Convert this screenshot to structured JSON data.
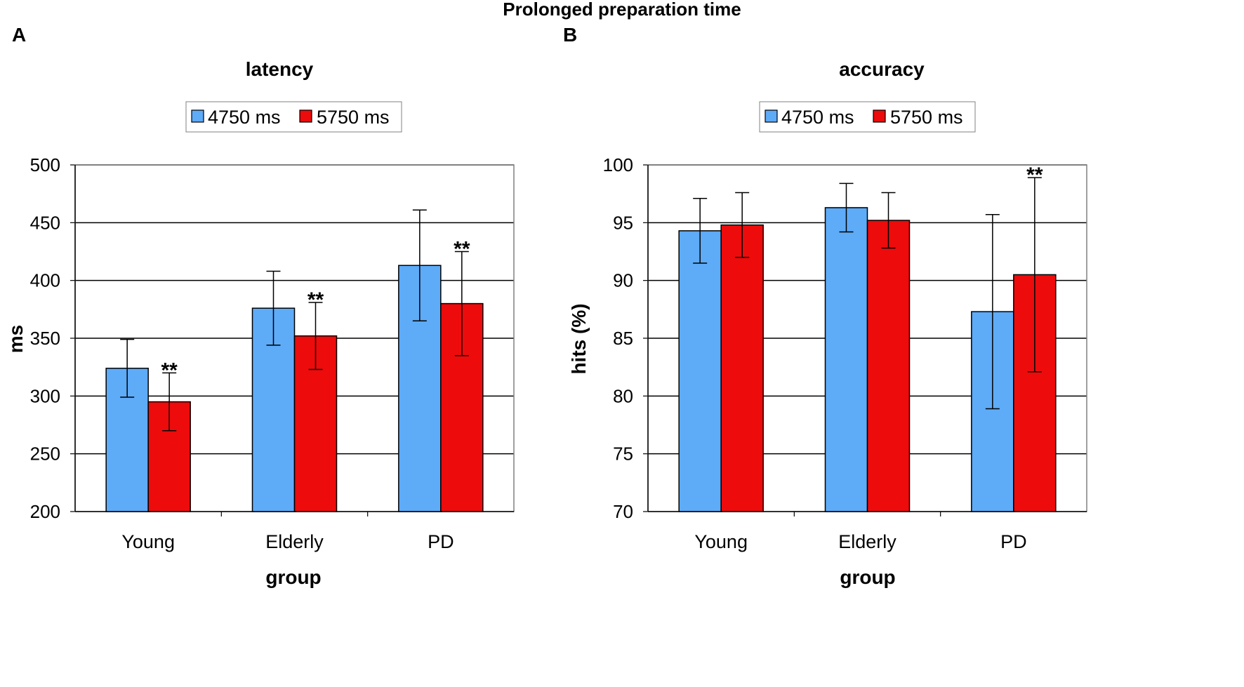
{
  "figure_title": "Prolonged preparation time",
  "colors": {
    "series_a": "#5eabf8",
    "series_b": "#ee0b0b",
    "grid": "#000000",
    "axis": "#808080"
  },
  "chart_data": [
    {
      "panel_label": "A",
      "type": "bar",
      "title": "latency",
      "xlabel": "group",
      "ylabel": "ms",
      "categories": [
        "Young",
        "Elderly",
        "PD"
      ],
      "ylim": [
        200,
        500
      ],
      "yticks": [
        200,
        250,
        300,
        350,
        400,
        450,
        500
      ],
      "grid": true,
      "legend": {
        "position": "top-center",
        "entries": [
          "4750 ms",
          "5750 ms"
        ]
      },
      "series": [
        {
          "name": "4750 ms",
          "values": [
            324,
            376,
            413
          ],
          "err_low": [
            299,
            344,
            365
          ],
          "err_high": [
            349,
            408,
            461
          ]
        },
        {
          "name": "5750 ms",
          "values": [
            295,
            352,
            380
          ],
          "err_low": [
            270,
            323,
            335
          ],
          "err_high": [
            320,
            381,
            425
          ],
          "annotations": [
            "**",
            "**",
            "**"
          ]
        }
      ]
    },
    {
      "panel_label": "B",
      "type": "bar",
      "title": "accuracy",
      "xlabel": "group",
      "ylabel": "hits (%)",
      "categories": [
        "Young",
        "Elderly",
        "PD"
      ],
      "ylim": [
        70,
        100
      ],
      "yticks": [
        70,
        75,
        80,
        85,
        90,
        95,
        100
      ],
      "grid": true,
      "legend": {
        "position": "top-center",
        "entries": [
          "4750 ms",
          "5750 ms"
        ]
      },
      "series": [
        {
          "name": "4750 ms",
          "values": [
            94.3,
            96.3,
            87.3
          ],
          "err_low": [
            91.5,
            94.2,
            78.9
          ],
          "err_high": [
            97.1,
            98.4,
            95.7
          ]
        },
        {
          "name": "5750 ms",
          "values": [
            94.8,
            95.2,
            90.5
          ],
          "err_low": [
            92.0,
            92.8,
            82.1
          ],
          "err_high": [
            97.6,
            97.6,
            98.9
          ],
          "annotations": [
            "",
            "",
            "**"
          ]
        }
      ]
    }
  ]
}
